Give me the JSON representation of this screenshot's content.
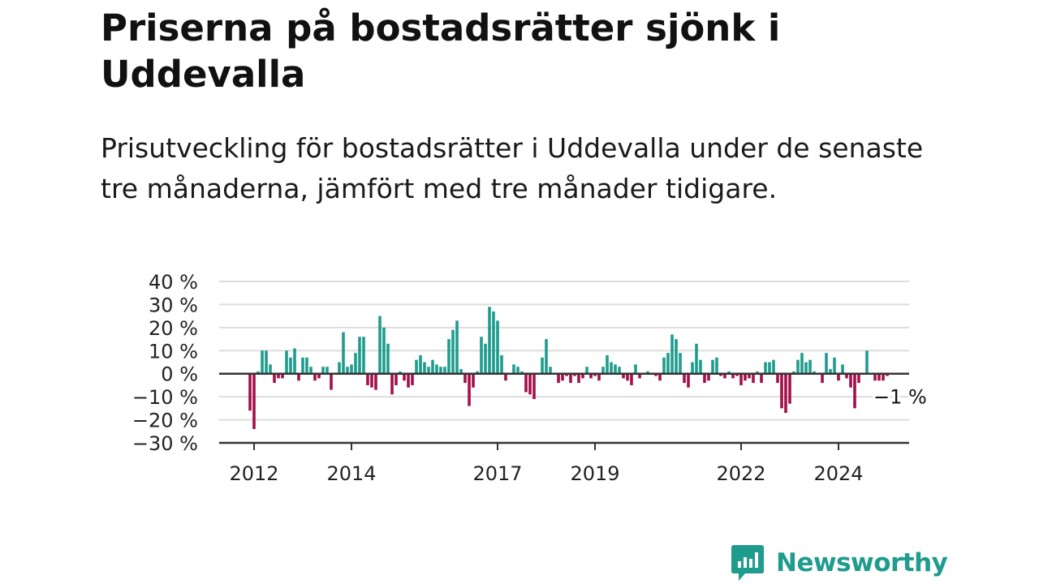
{
  "title": "Priserna på bostadsrätter sjönk i Uddevalla",
  "subtitle": "Prisutveckling för bostadsrätter i Uddevalla under de senaste tre månaderna, jämfört med tre månader tidigare.",
  "brand": {
    "name": "Newsworthy",
    "color": "#1f9c8e"
  },
  "colors": {
    "positive": "#1f9c8e",
    "negative": "#a3104a",
    "grid": "#dddddd",
    "axis": "#333333"
  },
  "chart_data": {
    "type": "bar",
    "title": "",
    "xlabel": "",
    "ylabel": "",
    "ylim": [
      -30,
      40
    ],
    "y_unit": "%",
    "y_ticks": [
      {
        "value": 40,
        "label": "40 %"
      },
      {
        "value": 30,
        "label": "30 %"
      },
      {
        "value": 20,
        "label": "20 %"
      },
      {
        "value": 10,
        "label": "10 %"
      },
      {
        "value": 0,
        "label": "0 %"
      },
      {
        "value": -10,
        "label": "−10 %"
      },
      {
        "value": -20,
        "label": "−20 %"
      },
      {
        "value": -30,
        "label": "−30 %"
      }
    ],
    "x_start": "2011-12",
    "x_ticks": [
      {
        "date": "2012-01",
        "label": "2012"
      },
      {
        "date": "2014-01",
        "label": "2014"
      },
      {
        "date": "2017-01",
        "label": "2017"
      },
      {
        "date": "2019-01",
        "label": "2019"
      },
      {
        "date": "2022-01",
        "label": "2022"
      },
      {
        "date": "2024-01",
        "label": "2024"
      }
    ],
    "annotation": {
      "date": "2025-05",
      "value": -1,
      "label": "−1 %"
    },
    "grid": true,
    "legend": "none",
    "values": [
      -16,
      -24,
      1,
      10,
      10,
      4,
      -4,
      -2,
      -2,
      10,
      7,
      11,
      -3,
      7,
      7,
      3,
      -3,
      -2,
      3,
      3,
      -7,
      0,
      5,
      18,
      3,
      4,
      9,
      16,
      16,
      -5,
      -6,
      -7,
      25,
      20,
      13,
      -9,
      -5,
      1,
      -3,
      -6,
      -5,
      6,
      8,
      5,
      3,
      6,
      4,
      3,
      3,
      15,
      19,
      23,
      2,
      -4,
      -14,
      -6,
      1,
      16,
      13,
      29,
      27,
      23,
      8,
      -3,
      0,
      4,
      3,
      1,
      -8,
      -9,
      -11,
      0,
      7,
      15,
      3,
      0,
      -4,
      -3,
      -1,
      -4,
      -1,
      -4,
      -2,
      3,
      -2,
      -1,
      -3,
      3,
      8,
      5,
      4,
      3,
      -2,
      -3,
      -5,
      4,
      -2,
      0,
      1,
      0,
      -1,
      -3,
      7,
      9,
      17,
      15,
      9,
      -4,
      -6,
      5,
      13,
      6,
      -4,
      -3,
      6,
      7,
      -1,
      -2,
      1,
      -2,
      -1,
      -5,
      -3,
      -2,
      -4,
      1,
      -4,
      5,
      5,
      6,
      -4,
      -15,
      -17,
      -13,
      1,
      6,
      9,
      5,
      6,
      1,
      0,
      -4,
      9,
      2,
      7,
      -3,
      4,
      -2,
      -6,
      -15,
      -4,
      0,
      10,
      0,
      -3,
      -3,
      -3,
      -1
    ]
  }
}
